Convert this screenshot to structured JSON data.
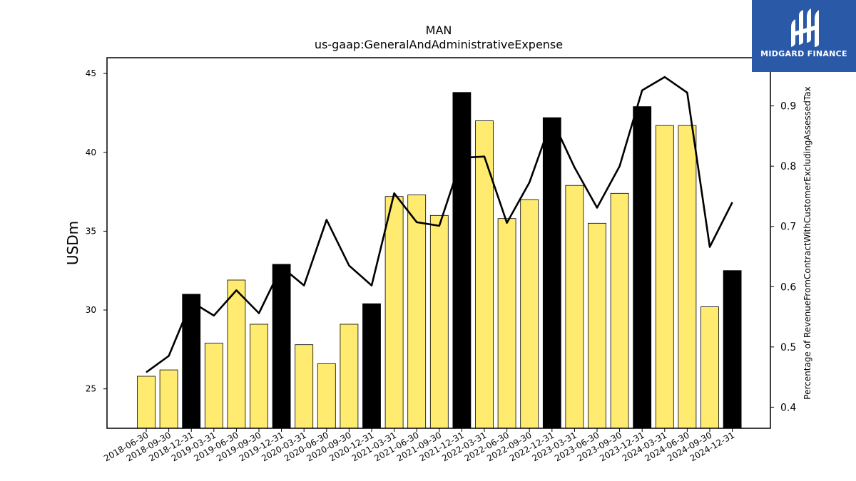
{
  "chart_data": {
    "type": "bar",
    "title": "MAN",
    "subtitle": "us-gaap:GeneralAndAdministrativeExpense",
    "ylabel": "USDm",
    "y2label": "Percentage of RevenueFromContractWithCustomerExcludingAssessedTax",
    "ylim": [
      22.5,
      46.0
    ],
    "y2lim": [
      0.365,
      0.98
    ],
    "yticks": [
      "25",
      "30",
      "35",
      "40",
      "45"
    ],
    "y2ticks": [
      "0.4",
      "0.5",
      "0.6",
      "0.7",
      "0.8",
      "0.9"
    ],
    "grid": false,
    "categories": [
      "2018-06-30",
      "2018-09-30",
      "2018-12-31",
      "2019-03-31",
      "2019-06-30",
      "2019-09-30",
      "2019-12-31",
      "2020-03-31",
      "2020-06-30",
      "2020-09-30",
      "2020-12-31",
      "2021-03-31",
      "2021-06-30",
      "2021-09-30",
      "2021-12-31",
      "2022-03-31",
      "2022-06-30",
      "2022-09-30",
      "2022-12-31",
      "2023-03-31",
      "2023-06-30",
      "2023-09-30",
      "2023-12-31",
      "2024-03-31",
      "2024-06-30",
      "2024-09-30",
      "2024-12-31"
    ],
    "series": [
      {
        "kind": "bar",
        "axis": "left",
        "values": [
          25.8,
          26.2,
          31.0,
          27.9,
          31.9,
          29.1,
          32.9,
          27.8,
          26.6,
          29.1,
          30.4,
          37.2,
          37.3,
          36.0,
          43.8,
          42.0,
          35.8,
          37.0,
          42.2,
          37.9,
          35.5,
          37.4,
          42.9,
          41.7,
          41.7,
          30.2,
          32.5
        ],
        "highlight": [
          false,
          false,
          true,
          false,
          false,
          false,
          true,
          false,
          false,
          false,
          true,
          false,
          false,
          false,
          true,
          false,
          false,
          false,
          true,
          false,
          false,
          false,
          true,
          false,
          false,
          false,
          true
        ]
      },
      {
        "kind": "line",
        "axis": "right",
        "values": [
          0.458,
          0.485,
          0.575,
          0.552,
          0.594,
          0.556,
          0.633,
          0.602,
          0.711,
          0.635,
          0.602,
          0.755,
          0.707,
          0.701,
          0.814,
          0.816,
          0.706,
          0.773,
          0.878,
          0.798,
          0.731,
          0.8,
          0.926,
          0.948,
          0.922,
          0.666,
          0.74
        ]
      }
    ],
    "colors": {
      "bar": "#ffeb70",
      "bar_highlight": "#000000",
      "bar_edge": "#000000",
      "line": "#000000"
    }
  },
  "logo": {
    "text": "MIDGARD FINANCE",
    "icon": "midgard-logo-icon",
    "background": "#2a59a8"
  }
}
